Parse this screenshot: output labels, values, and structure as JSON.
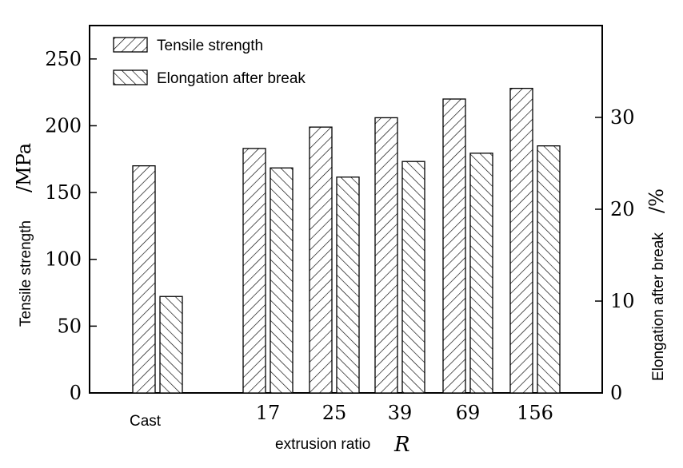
{
  "chart_data": {
    "type": "bar",
    "categories": [
      "Cast",
      "17",
      "25",
      "39",
      "69",
      "156"
    ],
    "series": [
      {
        "name": "Tensile strength",
        "axis": "left",
        "hatch": "forward",
        "values": [
          170,
          183,
          199,
          206,
          220,
          228
        ]
      },
      {
        "name": "Elongation after break",
        "axis": "right",
        "hatch": "backward",
        "values": [
          10.5,
          24.5,
          23.5,
          25.2,
          26.1,
          26.9
        ]
      }
    ],
    "xlabel": "extrusion ratio",
    "xlabel_symbol": "R",
    "ylabel_left": "Tensile strength",
    "ylabel_left_unit": "/MPa",
    "ylabel_right": "Elongation after break",
    "ylabel_right_unit": "/%",
    "ylim_left": [
      0,
      275
    ],
    "ylim_right": [
      0,
      40
    ],
    "yticks_left": [
      0,
      50,
      100,
      150,
      200,
      250
    ],
    "yticks_right": [
      0,
      10,
      20,
      30
    ],
    "legend": "top-left",
    "grid": false,
    "colors": {
      "fill": "#ffffff",
      "stroke": "#000000"
    }
  }
}
